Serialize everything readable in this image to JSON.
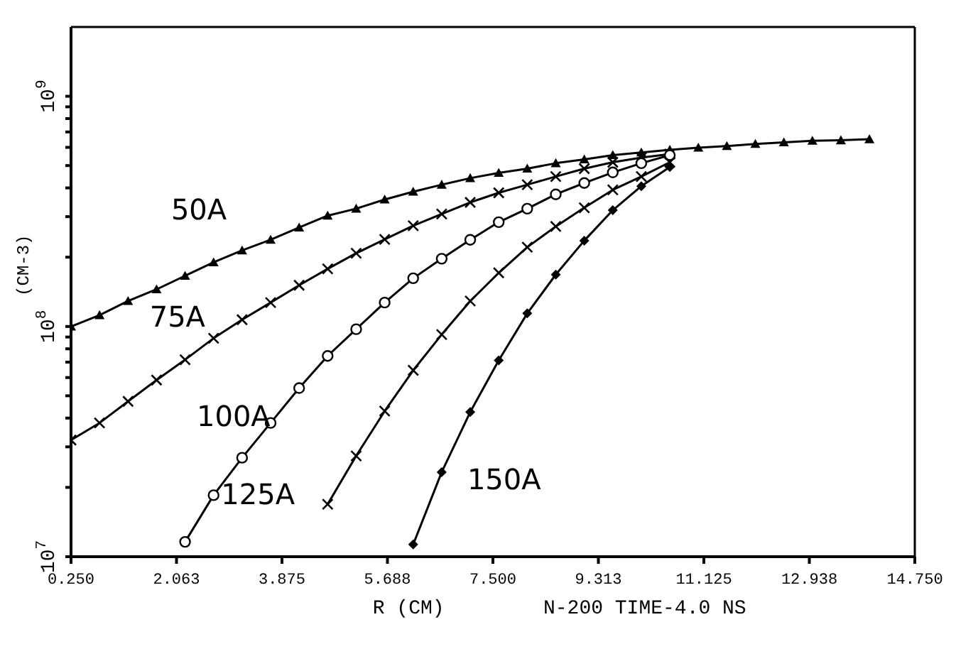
{
  "chart_data": {
    "type": "line",
    "xlabel": "R (CM)",
    "ylabel": "(CM-3)",
    "annotations": [
      "N-200 TIME-4.0 NS"
    ],
    "log": "y",
    "line_style": "solid",
    "xlim": [
      0.25,
      14.75
    ],
    "xticks": [
      {
        "value": 0.25,
        "label": "0.250"
      },
      {
        "value": 2.0625,
        "label": "2.063"
      },
      {
        "value": 3.875,
        "label": "3.875"
      },
      {
        "value": 5.6875,
        "label": "5.688"
      },
      {
        "value": 7.5,
        "label": "7.500"
      },
      {
        "value": 9.3125,
        "label": "9.313"
      },
      {
        "value": 11.125,
        "label": "11.125"
      },
      {
        "value": 12.9375,
        "label": "12.938"
      },
      {
        "value": 14.75,
        "label": "14.750"
      }
    ],
    "ylim": [
      10000000,
      2000000000
    ],
    "yticks": [
      {
        "value": 10000000,
        "label": "10$^{7}$"
      },
      {
        "value": 20000000,
        "label": null
      },
      {
        "value": 30000000,
        "label": null
      },
      {
        "value": 40000000,
        "label": null
      },
      {
        "value": 50000000,
        "label": null
      },
      {
        "value": 60000000,
        "label": null
      },
      {
        "value": 70000000,
        "label": null
      },
      {
        "value": 80000000,
        "label": null
      },
      {
        "value": 90000000,
        "label": null
      },
      {
        "value": 100000000,
        "label": "10$^{8}$"
      },
      {
        "value": 200000000,
        "label": null
      },
      {
        "value": 300000000,
        "label": null
      },
      {
        "value": 400000000,
        "label": null
      },
      {
        "value": 500000000,
        "label": null
      },
      {
        "value": 600000000,
        "label": null
      },
      {
        "value": 700000000,
        "label": null
      },
      {
        "value": 800000000,
        "label": null
      },
      {
        "value": 900000000,
        "label": null
      },
      {
        "value": 1000000000,
        "label": "10$^{9}$"
      }
    ],
    "series": [
      {
        "name": "50A",
        "color": "#000000",
        "marker": "triangle",
        "x": [
          0.25,
          0.74,
          1.23,
          1.72,
          2.21,
          2.7,
          3.19,
          3.68,
          4.17,
          4.66,
          5.15,
          5.64,
          6.13,
          6.62,
          7.11,
          7.6,
          8.09,
          8.58,
          9.07,
          9.56,
          10.05,
          10.54,
          11.03,
          11.52,
          12.01,
          12.5,
          12.99,
          13.48,
          13.97
        ],
        "values": [
          100000000,
          112000000,
          129000000,
          145000000,
          166000000,
          190000000,
          214000000,
          238000000,
          269000000,
          303000000,
          325000000,
          356000000,
          385000000,
          413000000,
          441000000,
          465000000,
          485000000,
          512000000,
          532000000,
          555000000,
          570000000,
          585000000,
          598000000,
          608000000,
          621000000,
          631000000,
          641000000,
          644000000,
          651000000
        ]
      },
      {
        "name": "75A",
        "color": "#000000",
        "marker": "cross",
        "x": [
          0.25,
          0.74,
          1.23,
          1.72,
          2.21,
          2.7,
          3.19,
          3.68,
          4.17,
          4.66,
          5.15,
          5.64,
          6.13,
          6.62,
          7.11,
          7.6,
          8.09,
          8.58,
          9.07,
          9.56,
          10.05,
          10.54
        ],
        "values": [
          32100000,
          38100000,
          47300000,
          58500000,
          71700000,
          88900000,
          107000000,
          127000000,
          151000000,
          178000000,
          208000000,
          239000000,
          274000000,
          308000000,
          346000000,
          381000000,
          413000000,
          448000000,
          485000000,
          517000000,
          541000000,
          561000000
        ]
      },
      {
        "name": "100A",
        "color": "#000000",
        "marker": "circle",
        "x": [
          2.21,
          2.7,
          3.19,
          3.68,
          4.17,
          4.66,
          5.15,
          5.64,
          6.13,
          6.62,
          7.11,
          7.6,
          8.09,
          8.58,
          9.07,
          9.56,
          10.05,
          10.54
        ],
        "values": [
          11600000,
          18500000,
          26900000,
          38100000,
          54000000,
          74500000,
          97300000,
          127000000,
          162000000,
          197000000,
          238000000,
          284000000,
          325000000,
          375000000,
          420000000,
          467000000,
          512000000,
          555000000
        ]
      },
      {
        "name": "125A",
        "color": "#000000",
        "marker": "cross",
        "x": [
          4.66,
          5.15,
          5.64,
          6.13,
          6.62,
          7.11,
          7.6,
          8.09,
          8.58,
          9.07,
          9.56,
          10.05,
          10.54
        ],
        "values": [
          16900000,
          27400000,
          42900000,
          64500000,
          92300000,
          129000000,
          171000000,
          221000000,
          272000000,
          328000000,
          392000000,
          448000000,
          517000000
        ]
      },
      {
        "name": "150A",
        "color": "#000000",
        "marker": "diamond",
        "x": [
          6.13,
          6.62,
          7.11,
          7.6,
          8.09,
          8.58,
          9.07,
          9.56,
          10.05,
          10.54
        ],
        "values": [
          11300000,
          23300000,
          42500000,
          71300000,
          114000000,
          168000000,
          236000000,
          320000000,
          407000000,
          493000000
        ]
      }
    ]
  }
}
